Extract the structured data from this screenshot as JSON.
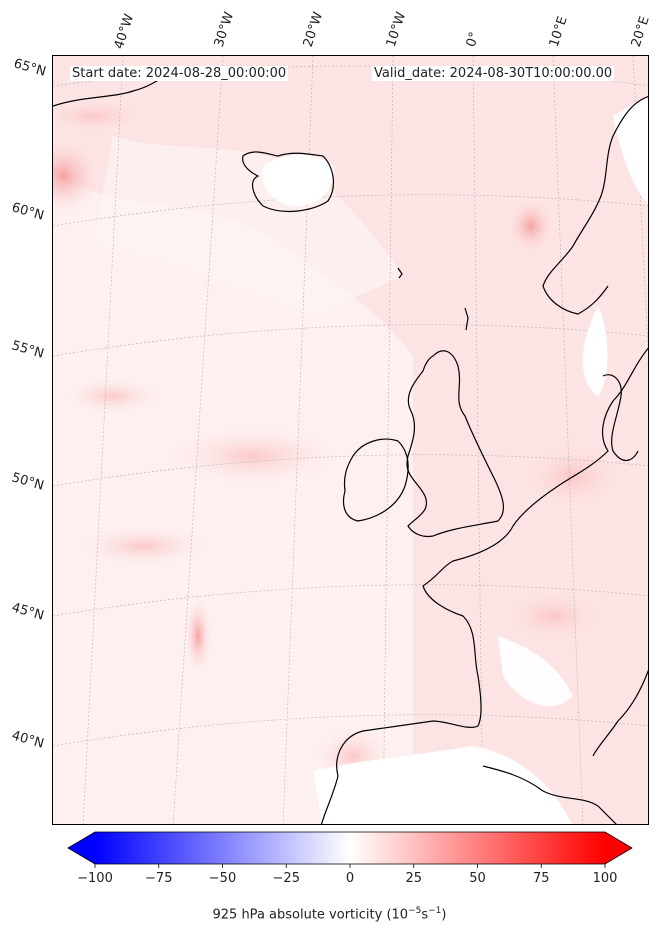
{
  "header": {
    "start_date": "Start date: 2024-08-28_00:00:00",
    "valid_date": "Valid_date: 2024-08-30T10:00:00.00"
  },
  "lon_labels": [
    "40°W",
    "30°W",
    "20°W",
    "10°W",
    "0°",
    "10°E",
    "20°E"
  ],
  "lat_labels": [
    "65°N",
    "60°N",
    "55°N",
    "50°N",
    "45°N",
    "40°N"
  ],
  "colorbar": {
    "ticks": [
      "−100",
      "−75",
      "−50",
      "−25",
      "0",
      "25",
      "50",
      "75",
      "100"
    ],
    "title": "925 hPa absolute vorticity (10",
    "title_exp1": "−5",
    "title_mid": "s",
    "title_exp2": "−1",
    "title_end": ")",
    "vmin": -100,
    "vmax": 100,
    "cmap": "bwr",
    "colors": {
      "low": "#0000ff",
      "mid": "#ffffff",
      "high": "#ff0000"
    }
  },
  "map": {
    "projection": "lambert-conformal",
    "background_color": "#fde9e9",
    "coastline_color": "#000000",
    "gridline_color": "#b0b0b0"
  }
}
